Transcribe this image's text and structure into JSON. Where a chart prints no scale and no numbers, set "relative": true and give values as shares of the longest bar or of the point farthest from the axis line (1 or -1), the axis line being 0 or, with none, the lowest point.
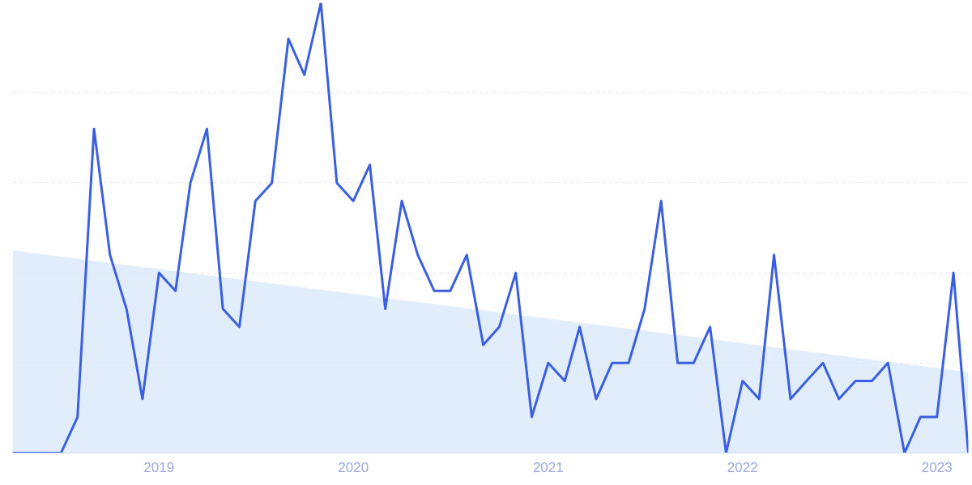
{
  "chart_data": {
    "type": "line",
    "relative": true,
    "grid": "y",
    "marker": "none",
    "line_style": "solid",
    "x": [
      "2018-04",
      "2018-05",
      "2018-06",
      "2018-07",
      "2018-08",
      "2018-09",
      "2018-10",
      "2018-11",
      "2018-12",
      "2019-01",
      "2019-02",
      "2019-03",
      "2019-04",
      "2019-05",
      "2019-06",
      "2019-07",
      "2019-08",
      "2019-09",
      "2019-10",
      "2019-11",
      "2019-12",
      "2020-01",
      "2020-02",
      "2020-03",
      "2020-04",
      "2020-05",
      "2020-06",
      "2020-07",
      "2020-08",
      "2020-09",
      "2020-10",
      "2020-11",
      "2020-12",
      "2021-01",
      "2021-02",
      "2021-03",
      "2021-04",
      "2021-05",
      "2021-06",
      "2021-07",
      "2021-08",
      "2021-09",
      "2021-10",
      "2021-11",
      "2021-12",
      "2022-01",
      "2022-02",
      "2022-03",
      "2022-04",
      "2022-05",
      "2022-06",
      "2022-07",
      "2022-08",
      "2022-09",
      "2022-10",
      "2022-11",
      "2022-12",
      "2023-01",
      "2023-02",
      "2023-03"
    ],
    "xlim": [
      "2018-04",
      "2023-03"
    ],
    "xticks": [
      "2019",
      "2020",
      "2021",
      "2022",
      "2023"
    ],
    "series": [
      {
        "color": "#3a5fe0",
        "values": [
          0,
          0,
          0,
          0,
          0.08,
          0.72,
          0.44,
          0.32,
          0.12,
          0.4,
          0.36,
          0.6,
          0.72,
          0.32,
          0.28,
          0.56,
          0.6,
          0.92,
          0.84,
          1.0,
          0.6,
          0.56,
          0.64,
          0.32,
          0.56,
          0.44,
          0.36,
          0.36,
          0.44,
          0.24,
          0.28,
          0.4,
          0.08,
          0.2,
          0.16,
          0.28,
          0.12,
          0.2,
          0.2,
          0.32,
          0.56,
          0.2,
          0.2,
          0.28,
          0,
          0.16,
          0.12,
          0.44,
          0.12,
          0.16,
          0.2,
          0.12,
          0.16,
          0.16,
          0.2,
          0,
          0.08,
          0.08,
          0.4,
          0
        ]
      },
      {
        "type": "area",
        "color": "#dbe8fa",
        "x": [
          "2018-04",
          "2023-03"
        ],
        "values": [
          0.45,
          0.18
        ]
      }
    ]
  }
}
